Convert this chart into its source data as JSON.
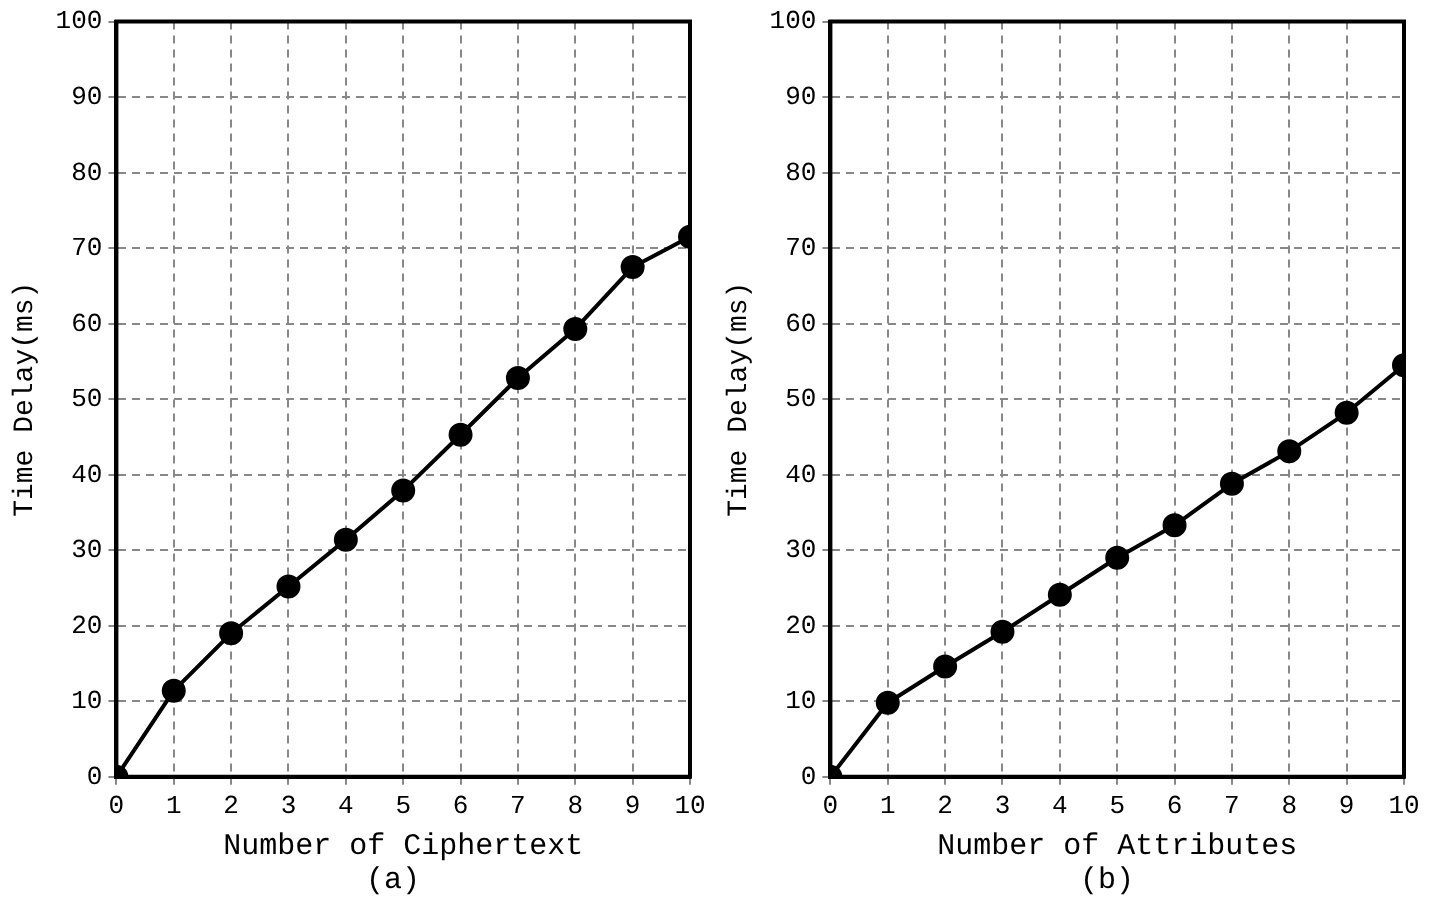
{
  "chart_data": [
    {
      "type": "line",
      "xlabel": "Number of Ciphertext",
      "ylabel": "Time Delay(ms)",
      "annotations": [
        "(a)"
      ],
      "x": [
        0,
        1,
        2,
        3,
        4,
        5,
        6,
        7,
        8,
        9,
        10
      ],
      "series": [
        {
          "color": "#000000",
          "values": [
            0,
            11.4,
            19.0,
            25.2,
            31.4,
            37.9,
            45.3,
            52.8,
            59.3,
            67.5,
            71.5
          ]
        }
      ],
      "xlim": [
        0,
        10
      ],
      "xticks": [
        0,
        1,
        2,
        3,
        4,
        5,
        6,
        7,
        8,
        9,
        10
      ],
      "ylim": [
        0,
        100
      ],
      "yticks": [
        0,
        10,
        20,
        30,
        40,
        50,
        60,
        70,
        80,
        90,
        100
      ],
      "grid": true,
      "marker": "circle",
      "line_style": "solid"
    },
    {
      "type": "line",
      "xlabel": "Number of Attributes",
      "ylabel": "Time Delay(ms)",
      "annotations": [
        "(b)"
      ],
      "x": [
        0,
        1,
        2,
        3,
        4,
        5,
        6,
        7,
        8,
        9,
        10
      ],
      "series": [
        {
          "color": "#000000",
          "values": [
            0,
            9.8,
            14.6,
            19.2,
            24.1,
            29.0,
            33.3,
            38.8,
            43.1,
            48.2,
            54.5
          ]
        }
      ],
      "xlim": [
        0,
        10
      ],
      "xticks": [
        0,
        1,
        2,
        3,
        4,
        5,
        6,
        7,
        8,
        9,
        10
      ],
      "ylim": [
        0,
        100
      ],
      "yticks": [
        0,
        10,
        20,
        30,
        40,
        50,
        60,
        70,
        80,
        90,
        100
      ],
      "grid": true,
      "marker": "circle",
      "line_style": "solid"
    }
  ]
}
